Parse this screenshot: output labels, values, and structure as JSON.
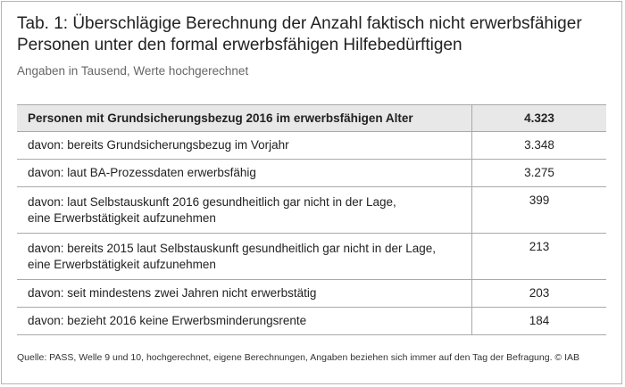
{
  "title": "Tab. 1: Überschlägige Berechnung der Anzahl faktisch nicht erwerbsfähiger Personen unter den formal erwerbsfähigen Hilfebedürftigen",
  "subtitle": "Angaben in Tausend, Werte hochgerechnet",
  "table": {
    "header": {
      "label": "Personen mit Grundsicherungsbezug 2016 im erwerbsfähigen Alter",
      "value": "4.323"
    },
    "rows": [
      {
        "label": "davon: bereits Grundsicherungsbezug im Vorjahr",
        "value": "3.348"
      },
      {
        "label": "davon: laut BA-Prozessdaten erwerbsfähig",
        "value": "3.275"
      },
      {
        "label_line1": "davon: laut Selbstauskunft 2016 gesundheitlich gar nicht in der Lage,",
        "label_line2": "eine Erwerbstätigkeit aufzunehmen",
        "value": "399"
      },
      {
        "label_line1": "davon: bereits 2015 laut Selbstauskunft gesundheitlich gar nicht in der Lage,",
        "label_line2": "eine Erwerbstätigkeit aufzunehmen",
        "value": "213"
      },
      {
        "label": "davon: seit mindestens zwei Jahren nicht erwerbstätig",
        "value": "203"
      },
      {
        "label": "davon: bezieht 2016 keine Erwerbsminderungsrente",
        "value": "184"
      }
    ]
  },
  "source": "Quelle: PASS, Welle 9 und 10, hochgerechnet, eigene Berechnungen, Angaben beziehen sich immer auf den Tag der Befragung. © IAB"
}
